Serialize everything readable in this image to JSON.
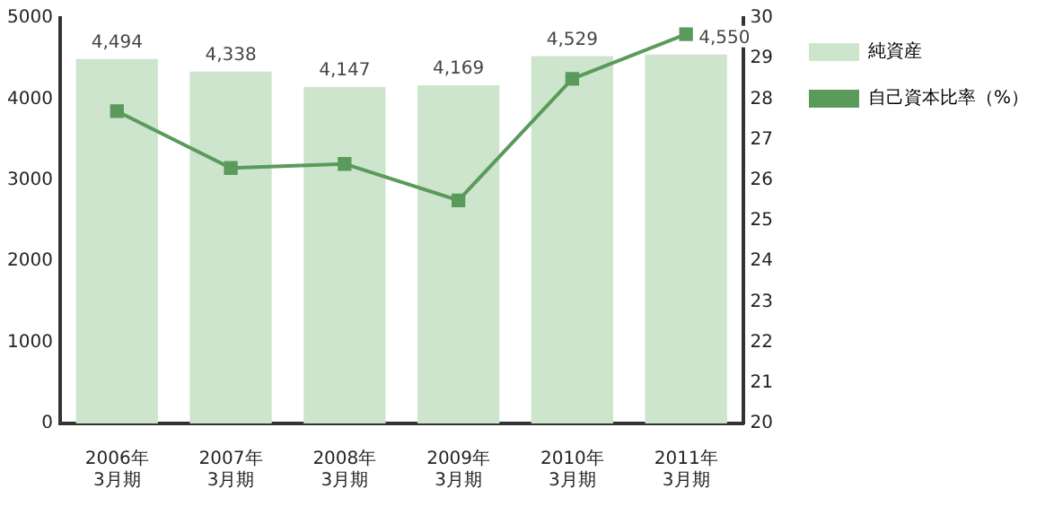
{
  "chart_data": {
    "type": "bar",
    "categories": [
      "2006年\n3月期",
      "2007年\n3月期",
      "2008年\n3月期",
      "2009年\n3月期",
      "2010年\n3月期",
      "2011年\n3月期"
    ],
    "series": [
      {
        "name": "純資産",
        "color": "#cde5cd",
        "values": [
          4494,
          4338,
          4147,
          4169,
          4529,
          4550
        ],
        "value_labels": [
          "4,494",
          "4,338",
          "4,147",
          "4,169",
          "4,529",
          "4,550"
        ]
      },
      {
        "name": "自己資本比率（%）",
        "type": "line",
        "axis": "y2",
        "color": "#5a9a5a",
        "values": [
          27.7,
          26.3,
          26.4,
          25.5,
          28.5,
          29.6
        ]
      }
    ],
    "ylim": [
      0,
      5000
    ],
    "yticks": [
      0,
      1000,
      2000,
      3000,
      4000,
      5000
    ],
    "y2lim": [
      20,
      30
    ],
    "y2ticks": [
      20,
      21,
      22,
      23,
      24,
      25,
      26,
      27,
      28,
      29,
      30
    ],
    "grid": false,
    "legend": "top right",
    "marker": "square",
    "line_style": "solid"
  }
}
